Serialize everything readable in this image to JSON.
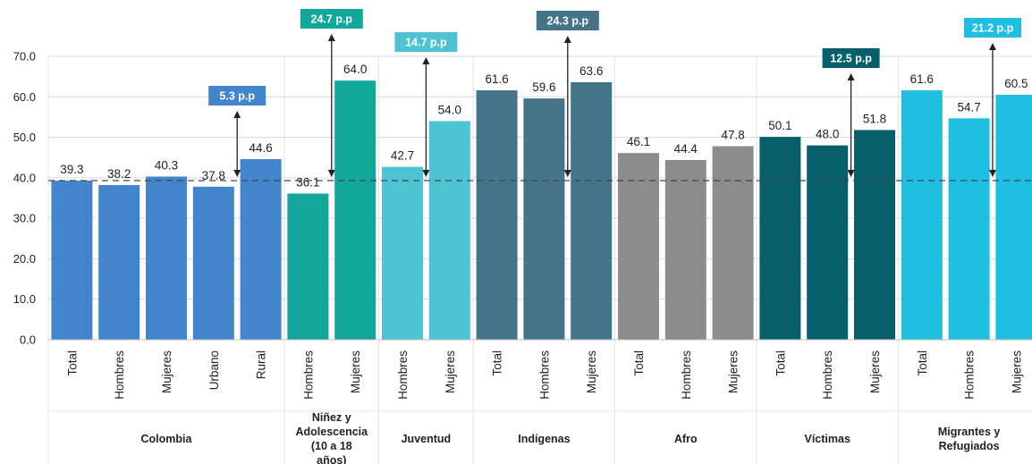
{
  "chart_data": {
    "type": "bar",
    "ylim": [
      0,
      70
    ],
    "yticks": [
      "0.0",
      "10.0",
      "20.0",
      "30.0",
      "40.0",
      "50.0",
      "60.0",
      "70.0"
    ],
    "grid": true,
    "reference_line": 39.3,
    "groups": [
      {
        "name": "Colombia",
        "color": "#4285CC",
        "categories": [
          "Total",
          "Hombres",
          "Mujeres",
          "Urbano",
          "Rural"
        ],
        "values": [
          39.3,
          38.2,
          40.3,
          37.8,
          44.6
        ],
        "value_labels": [
          "39.3",
          "38.2",
          "40.3",
          "37.8",
          "44.6"
        ],
        "gap": {
          "label": "5.3 p.p",
          "color": "#4285CC"
        }
      },
      {
        "name": "Niñez y Adolescencia (10 a 18 años)",
        "color": "#13A69A",
        "categories": [
          "Hombres",
          "Mujeres"
        ],
        "values": [
          36.1,
          64.0
        ],
        "value_labels": [
          "36.1",
          "64.0"
        ],
        "gap": {
          "label": "24.7 p.p",
          "color": "#13A69A"
        }
      },
      {
        "name": "Juventud",
        "color": "#4EC3D3",
        "categories": [
          "Hombres",
          "Mujeres"
        ],
        "values": [
          42.7,
          54.0
        ],
        "value_labels": [
          "42.7",
          "54.0"
        ],
        "gap": {
          "label": "14.7 p.p",
          "color": "#4EC3D3"
        }
      },
      {
        "name": "Indígenas",
        "color": "#45738A",
        "categories": [
          "Total",
          "Hombres",
          "Mujeres"
        ],
        "values": [
          61.6,
          59.6,
          63.6
        ],
        "value_labels": [
          "61.6",
          "59.6",
          "63.6"
        ],
        "gap": {
          "label": "24.3 p.p",
          "color": "#45738A"
        }
      },
      {
        "name": "Afro",
        "color": "#8C8C8C",
        "categories": [
          "Total",
          "Hombres",
          "Mujeres"
        ],
        "values": [
          46.1,
          44.4,
          47.8
        ],
        "value_labels": [
          "46.1",
          "44.4",
          "47.8"
        ]
      },
      {
        "name": "Víctimas",
        "color": "#075F6C",
        "categories": [
          "Total",
          "Hombres",
          "Mujeres"
        ],
        "values": [
          50.1,
          48.0,
          51.8
        ],
        "value_labels": [
          "50.1",
          "48.0",
          "51.8"
        ],
        "gap": {
          "label": "12.5 p.p",
          "color": "#075F6C"
        }
      },
      {
        "name": "Migrantes y Refugiados",
        "color": "#20BFE2",
        "categories": [
          "Total",
          "Hombres",
          "Mujeres"
        ],
        "values": [
          61.6,
          54.7,
          60.5
        ],
        "value_labels": [
          "61.6",
          "54.7",
          "60.5"
        ],
        "gap": {
          "label": "21.2 p.p",
          "color": "#20BFE2"
        }
      }
    ]
  }
}
